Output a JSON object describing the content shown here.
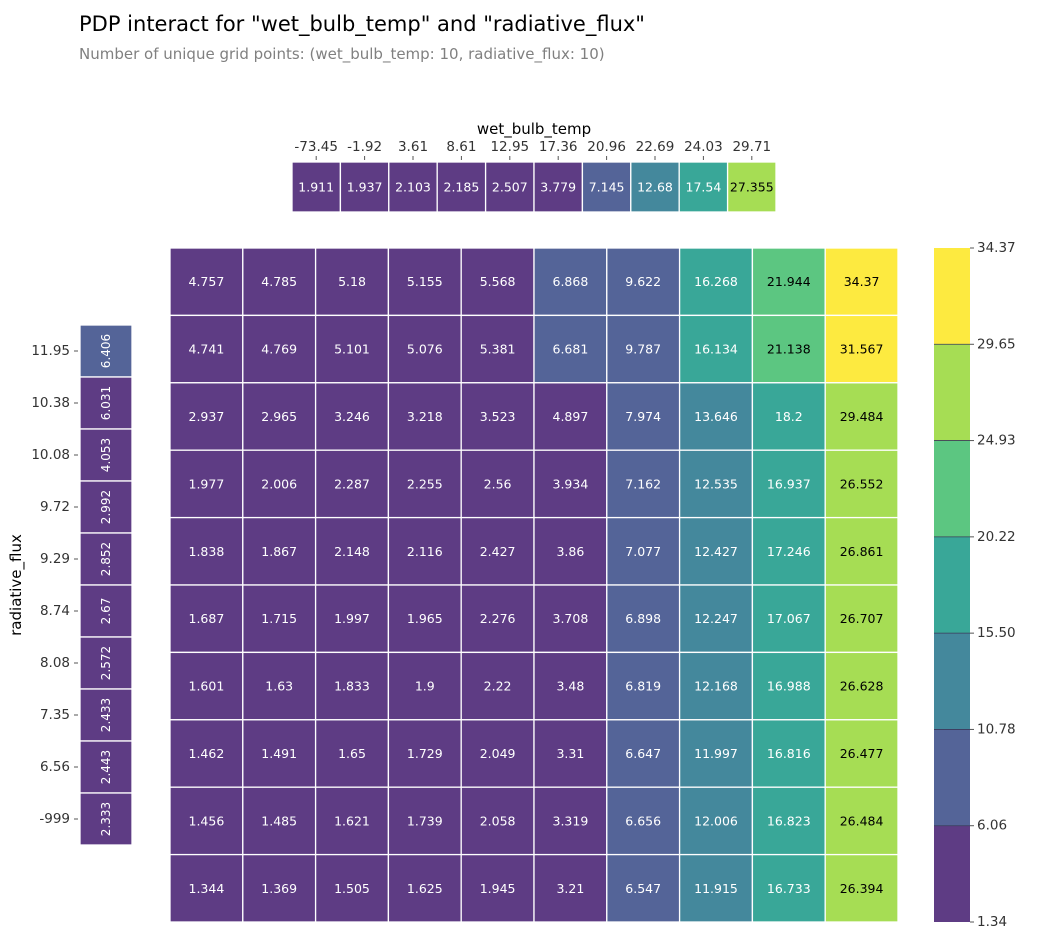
{
  "title": "PDP interact for \"wet_bulb_temp\" and \"radiative_flux\"",
  "subtitle": "Number of unique grid points: (wet_bulb_temp: 10, radiative_flux: 10)",
  "chart_data": {
    "type": "heatmap",
    "colormap": "viridis",
    "xlabel": "wet_bulb_temp",
    "ylabel": "radiative_flux",
    "x_ticks": [
      "-73.45",
      "-1.92",
      "3.61",
      "8.61",
      "12.95",
      "17.36",
      "20.96",
      "22.69",
      "24.03",
      "29.71"
    ],
    "y_ticks": [
      "11.95",
      "10.38",
      "10.08",
      "9.72",
      "9.29",
      "8.74",
      "8.08",
      "7.35",
      "6.56",
      "-999"
    ],
    "x_marginal": [
      "1.911",
      "1.937",
      "2.103",
      "2.185",
      "2.507",
      "3.779",
      "7.145",
      "12.68",
      "17.54",
      "27.355"
    ],
    "y_marginal": [
      "6.406",
      "6.031",
      "4.053",
      "2.992",
      "2.852",
      "2.67",
      "2.572",
      "2.433",
      "2.443",
      "2.333"
    ],
    "matrix": [
      [
        "4.757",
        "4.785",
        "5.18",
        "5.155",
        "5.568",
        "6.868",
        "9.622",
        "16.268",
        "21.944",
        "34.37"
      ],
      [
        "4.741",
        "4.769",
        "5.101",
        "5.076",
        "5.381",
        "6.681",
        "9.787",
        "16.134",
        "21.138",
        "31.567"
      ],
      [
        "2.937",
        "2.965",
        "3.246",
        "3.218",
        "3.523",
        "4.897",
        "7.974",
        "13.646",
        "18.2",
        "29.484"
      ],
      [
        "1.977",
        "2.006",
        "2.287",
        "2.255",
        "2.56",
        "3.934",
        "7.162",
        "12.535",
        "16.937",
        "26.552"
      ],
      [
        "1.838",
        "1.867",
        "2.148",
        "2.116",
        "2.427",
        "3.86",
        "7.077",
        "12.427",
        "17.246",
        "26.861"
      ],
      [
        "1.687",
        "1.715",
        "1.997",
        "1.965",
        "2.276",
        "3.708",
        "6.898",
        "12.247",
        "17.067",
        "26.707"
      ],
      [
        "1.601",
        "1.63",
        "1.833",
        "1.9",
        "2.22",
        "3.48",
        "6.819",
        "12.168",
        "16.988",
        "26.628"
      ],
      [
        "1.462",
        "1.491",
        "1.65",
        "1.729",
        "2.049",
        "3.31",
        "6.647",
        "11.997",
        "16.816",
        "26.477"
      ],
      [
        "1.456",
        "1.485",
        "1.621",
        "1.739",
        "2.058",
        "3.319",
        "6.656",
        "12.006",
        "16.823",
        "26.484"
      ],
      [
        "1.344",
        "1.369",
        "1.505",
        "1.625",
        "1.945",
        "3.21",
        "6.547",
        "11.915",
        "16.733",
        "26.394"
      ]
    ],
    "colorbar": {
      "ticks": [
        "1.34",
        "6.06",
        "10.78",
        "15.50",
        "20.22",
        "24.93",
        "29.65",
        "34.37"
      ],
      "min": 1.34,
      "max": 34.37,
      "colors": [
        "#482173",
        "#433e85",
        "#38588c",
        "#2d708e",
        "#25858e",
        "#1e9b8a",
        "#2ab07f",
        "#52c569",
        "#86d549",
        "#c2df23",
        "#fde725"
      ]
    }
  }
}
